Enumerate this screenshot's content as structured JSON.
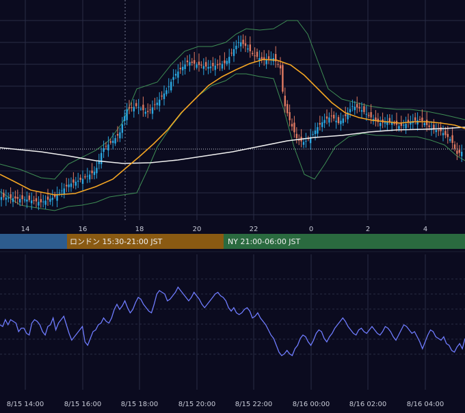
{
  "theme": {
    "background": "#0b0b1f",
    "grid": "#2a2d45",
    "candle_up": "#2aa7e0",
    "candle_down": "#e07a62",
    "ma_short": "#f5a623",
    "ma_long": "#f2f2f2",
    "bollinger": "#3f8f55",
    "oscillator": "#6f7cff",
    "session_tokyo": "#2d5c8e",
    "session_london": "#8a5a12",
    "session_ny": "#2a6a3f"
  },
  "sessions": [
    {
      "id": "tokyo",
      "label": ""
    },
    {
      "id": "london",
      "label": "ロンドン 15:30-21:00 JST"
    },
    {
      "id": "ny",
      "label": "NY 21:00-06:00 JST"
    }
  ],
  "chart_data": [
    {
      "type": "candlestick",
      "title": "",
      "x_axis": {
        "type": "hour",
        "tick_labels": [
          "14",
          "16",
          "18",
          "20",
          "22",
          "0",
          "2",
          "4"
        ]
      },
      "overlays": [
        "moving-average-short",
        "moving-average-long",
        "bollinger-bands"
      ],
      "grid": true,
      "reference_line": "dotted horizontal",
      "current_time_marker": "dotted vertical"
    },
    {
      "type": "line",
      "title": "",
      "x_axis": {
        "type": "datetime",
        "tick_labels": [
          "8/15 14:00",
          "8/15 16:00",
          "8/15 18:00",
          "8/15 20:00",
          "8/15 22:00",
          "8/16 00:00",
          "8/16 02:00",
          "8/16 04:00"
        ]
      },
      "series": [
        {
          "name": "",
          "values": [
            48,
            47,
            51,
            48,
            51,
            50,
            49,
            44,
            46,
            46,
            43,
            42,
            49,
            51,
            50,
            48,
            44,
            42,
            47,
            48,
            52,
            45,
            49,
            51,
            53,
            48,
            43,
            39,
            41,
            43,
            45,
            47,
            38,
            36,
            40,
            44,
            45,
            48,
            49,
            52,
            50,
            49,
            52,
            57,
            60,
            57,
            59,
            62,
            58,
            55,
            57,
            61,
            64,
            63,
            60,
            58,
            56,
            55,
            60,
            66,
            68,
            67,
            66,
            62,
            63,
            65,
            67,
            70,
            68,
            66,
            64,
            62,
            64,
            67,
            65,
            63,
            60,
            58,
            60,
            62,
            64,
            66,
            67,
            65,
            64,
            62,
            58,
            56,
            58,
            55,
            54,
            55,
            57,
            58,
            56,
            52,
            53,
            55,
            52,
            50,
            48,
            45,
            42,
            40,
            36,
            32,
            30,
            31,
            33,
            31,
            30,
            34,
            36,
            40,
            42,
            41,
            38,
            36,
            39,
            43,
            45,
            44,
            40,
            38,
            41,
            43,
            46,
            48,
            50,
            52,
            50,
            47,
            45,
            43,
            42,
            45,
            46,
            44,
            43,
            45,
            47,
            45,
            43,
            42,
            44,
            47,
            46,
            44,
            41,
            39,
            42,
            45,
            48,
            47,
            45,
            43,
            44,
            41,
            38,
            34,
            38,
            42,
            45,
            44,
            41,
            40,
            39,
            41,
            37,
            36,
            33,
            32,
            35,
            37,
            34,
            40
          ]
        }
      ],
      "grid": true
    }
  ]
}
